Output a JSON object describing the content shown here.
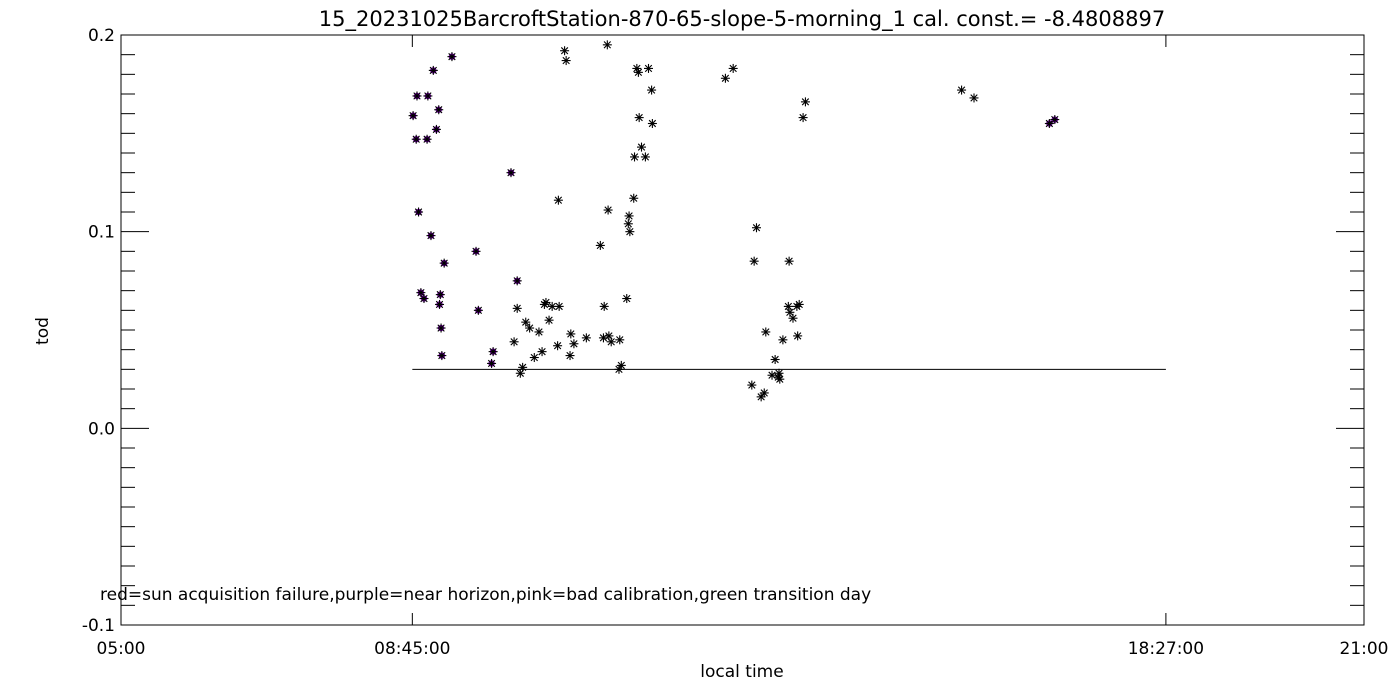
{
  "chart_data": {
    "type": "scatter",
    "title": "15_20231025BarcroftStation-870-65-slope-5-morning_1 cal. const.= -8.4808897",
    "xlabel": "local time",
    "ylabel": "tod",
    "xlim": [
      5,
      21
    ],
    "ylim": [
      -0.1,
      0.2
    ],
    "x_ticks": [
      {
        "value": 5,
        "label": "05:00"
      },
      {
        "value": 8.75,
        "label": "08:45:00"
      },
      {
        "value": 18.45,
        "label": "18:27:00"
      },
      {
        "value": 21,
        "label": "21:00"
      }
    ],
    "y_ticks": [
      {
        "value": -0.1,
        "label": "-0.1"
      },
      {
        "value": 0.0,
        "label": "0.0"
      },
      {
        "value": 0.1,
        "label": "0.1"
      },
      {
        "value": 0.2,
        "label": "0.2"
      }
    ],
    "annotation": "red=sun acquisition failure,purple=near horizon,pink=bad calibration,green transition day",
    "reference_line": {
      "x": [
        8.75,
        18.45
      ],
      "y": 0.03
    },
    "colors": {
      "normal": "#000000",
      "near_horizon": "#7a00b0"
    },
    "series": [
      {
        "category": "near-horizon",
        "x": [
          8.76,
          8.8,
          8.81,
          8.83,
          8.86,
          8.9,
          8.94,
          8.95,
          8.99,
          9.02,
          9.06,
          9.09,
          9.11,
          9.1,
          9.12,
          9.13,
          9.16,
          9.26,
          9.77,
          9.79,
          10.02,
          10.1,
          9.57,
          9.6,
          16.95,
          17.02
        ],
        "y": [
          0.159,
          0.147,
          0.169,
          0.11,
          0.069,
          0.066,
          0.147,
          0.169,
          0.098,
          0.182,
          0.152,
          0.162,
          0.068,
          0.063,
          0.051,
          0.037,
          0.084,
          0.189,
          0.033,
          0.039,
          0.13,
          0.075,
          0.09,
          0.06,
          0.155,
          0.157
        ]
      },
      {
        "category": "normal",
        "x": [
          10.06,
          10.1,
          10.14,
          10.17,
          10.21,
          10.26,
          10.32,
          10.38,
          10.42,
          10.45,
          10.47,
          10.51,
          10.55,
          10.62,
          10.63,
          10.64,
          10.71,
          10.73,
          10.78,
          10.79,
          10.83,
          10.99,
          11.17,
          11.21,
          11.22,
          11.27,
          11.28,
          11.31,
          11.26,
          11.41,
          11.42,
          11.44,
          11.51,
          11.53,
          11.54,
          11.55,
          11.6,
          11.61,
          11.64,
          11.66,
          11.67,
          11.7,
          11.75,
          11.79,
          11.83,
          11.84,
          12.78,
          12.88,
          13.15,
          13.18,
          13.12,
          13.24,
          13.3,
          13.28,
          13.38,
          13.42,
          13.46,
          13.47,
          13.48,
          13.52,
          13.59,
          13.6,
          13.65,
          13.61,
          13.7,
          13.71,
          13.73,
          13.78,
          13.81,
          15.82,
          15.98
        ],
        "y": [
          0.044,
          0.061,
          0.028,
          0.031,
          0.054,
          0.051,
          0.036,
          0.049,
          0.039,
          0.063,
          0.064,
          0.055,
          0.062,
          0.042,
          0.116,
          0.062,
          0.192,
          0.187,
          0.037,
          0.048,
          0.043,
          0.046,
          0.093,
          0.046,
          0.062,
          0.111,
          0.047,
          0.044,
          0.195,
          0.03,
          0.045,
          0.032,
          0.066,
          0.104,
          0.108,
          0.1,
          0.117,
          0.138,
          0.183,
          0.181,
          0.158,
          0.143,
          0.138,
          0.183,
          0.172,
          0.155,
          0.178,
          0.183,
          0.085,
          0.102,
          0.022,
          0.016,
          0.049,
          0.018,
          0.027,
          0.035,
          0.026,
          0.028,
          0.025,
          0.045,
          0.062,
          0.085,
          0.056,
          0.059,
          0.062,
          0.047,
          0.063,
          0.158,
          0.166,
          0.172,
          0.168
        ]
      }
    ]
  }
}
